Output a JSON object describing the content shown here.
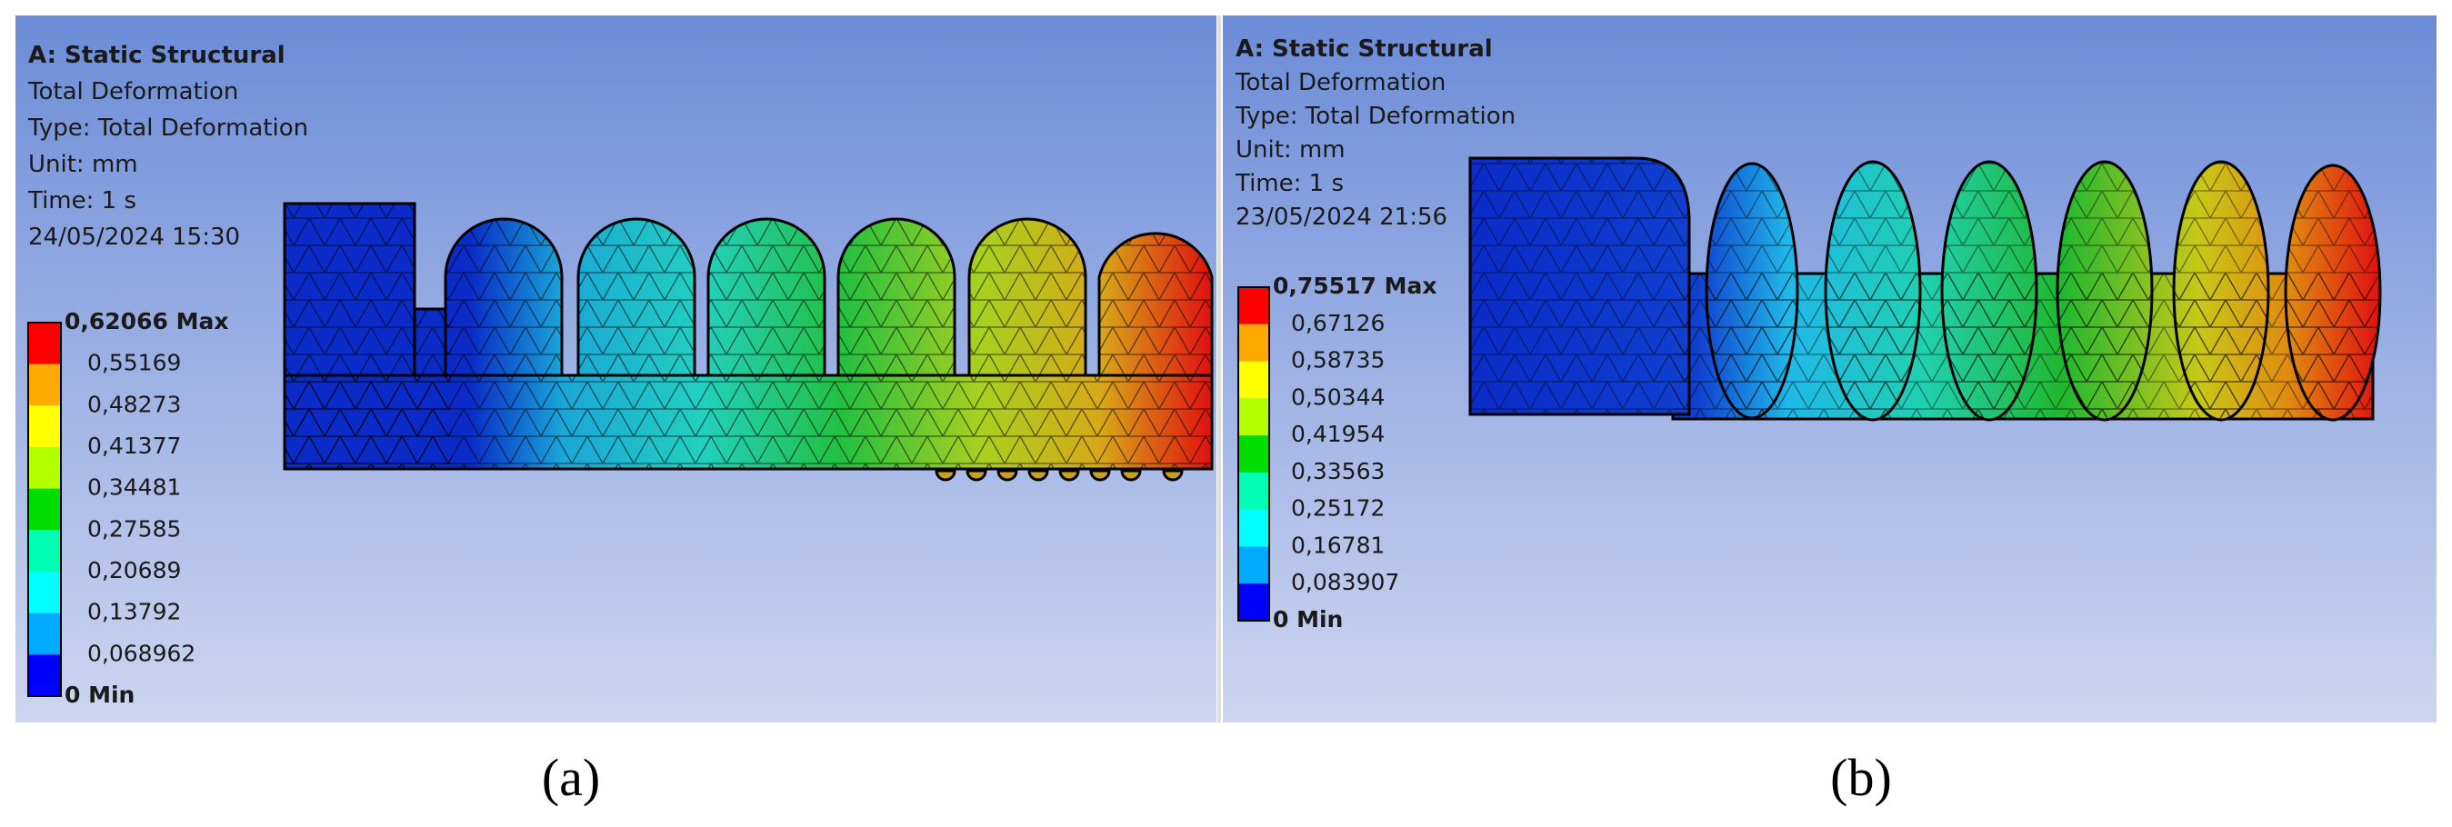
{
  "panels": [
    {
      "header": {
        "title": "A: Static Structural",
        "lines": [
          "Total Deformation",
          "Type: Total Deformation",
          "Unit: mm",
          "Time: 1 s",
          "24/05/2024 15:30"
        ]
      },
      "legend": [
        "0,62066 Max",
        "0,55169",
        "0,48273",
        "0,41377",
        "0,34481",
        "0,27585",
        "0,20689",
        "0,13792",
        "0,068962",
        "0 Min"
      ],
      "caption": "(a)"
    },
    {
      "header": {
        "title": "A: Static Structural",
        "lines": [
          "Total Deformation",
          "Type: Total Deformation",
          "Unit: mm",
          "Time: 1 s",
          "23/05/2024 21:56"
        ]
      },
      "legend": [
        "0,75517 Max",
        "0,67126",
        "0,58735",
        "0,50344",
        "0,41954",
        "0,33563",
        "0,25172",
        "0,16781",
        "0,083907",
        "0 Min"
      ],
      "caption": "(b)"
    }
  ]
}
